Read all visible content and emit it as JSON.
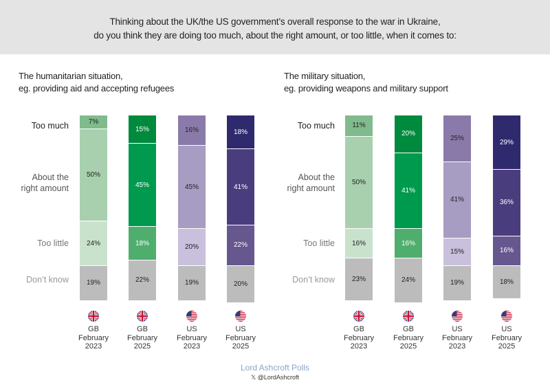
{
  "header": {
    "line1": "Thinking about the UK/the US government’s overall response to the war in Ukraine,",
    "line2": "do you think they are doing too much, about the right amount, or too little, when it comes to:"
  },
  "footer": {
    "brand": "Lord Ashcroft Polls",
    "handle": "𝕏 @LordAshcroft"
  },
  "chart_data": [
    {
      "type": "bar",
      "stacked": true,
      "orientation": "vertical",
      "title": "The humanitarian situation,",
      "subtitle": "eg. providing aid and accepting refugees",
      "categories": [
        {
          "country": "GB",
          "month": "February",
          "year": "2023",
          "flag": "uk-flag-icon"
        },
        {
          "country": "GB",
          "month": "February",
          "year": "2025",
          "flag": "uk-flag-icon"
        },
        {
          "country": "US",
          "month": "February",
          "year": "2023",
          "flag": "us-flag-icon"
        },
        {
          "country": "US",
          "month": "February",
          "year": "2025",
          "flag": "us-flag-icon"
        }
      ],
      "series": [
        {
          "name": "Too much",
          "values": [
            7,
            15,
            16,
            18
          ]
        },
        {
          "name": "About the right amount",
          "values": [
            50,
            45,
            45,
            41
          ]
        },
        {
          "name": "Too little",
          "values": [
            24,
            18,
            20,
            22
          ]
        },
        {
          "name": "Don’t know",
          "values": [
            19,
            22,
            19,
            20
          ]
        }
      ],
      "ylim": [
        0,
        100
      ],
      "unit": "%"
    },
    {
      "type": "bar",
      "stacked": true,
      "orientation": "vertical",
      "title": "The military situation,",
      "subtitle": "eg. providing weapons and military support",
      "categories": [
        {
          "country": "GB",
          "month": "February",
          "year": "2023",
          "flag": "uk-flag-icon"
        },
        {
          "country": "GB",
          "month": "February",
          "year": "2025",
          "flag": "uk-flag-icon"
        },
        {
          "country": "US",
          "month": "February",
          "year": "2023",
          "flag": "us-flag-icon"
        },
        {
          "country": "US",
          "month": "February",
          "year": "2025",
          "flag": "us-flag-icon"
        }
      ],
      "series": [
        {
          "name": "Too much",
          "values": [
            11,
            20,
            25,
            29
          ]
        },
        {
          "name": "About the right amount",
          "values": [
            50,
            41,
            41,
            36
          ]
        },
        {
          "name": "Too little",
          "values": [
            16,
            16,
            15,
            16
          ]
        },
        {
          "name": "Don’t know",
          "values": [
            23,
            24,
            19,
            18
          ]
        }
      ],
      "ylim": [
        0,
        100
      ],
      "unit": "%"
    }
  ],
  "row_labels": [
    {
      "key": "too_much",
      "text": "Too much",
      "color": "#222222"
    },
    {
      "key": "about_right",
      "line1": "About the",
      "line2": "right amount",
      "color": "#555555"
    },
    {
      "key": "too_little",
      "text": "Too little",
      "color": "#777777"
    },
    {
      "key": "dont_know",
      "text": "Don’t know",
      "color": "#999999"
    }
  ],
  "palette": {
    "gb2023": [
      "#7fbb8c",
      "#a8d0ae",
      "#c9e2cc",
      "#bcbcbc"
    ],
    "gb2025": [
      "#008a3e",
      "#009a4e",
      "#4fae6e",
      "#bcbcbc"
    ],
    "us2023": [
      "#8a7aaa",
      "#a79cc2",
      "#c8c0dc",
      "#bcbcbc"
    ],
    "us2025": [
      "#2f2a6e",
      "#4a3d7e",
      "#66578f",
      "#bcbcbc"
    ],
    "label_text": [
      [
        "#222222",
        "#222222",
        "#222222",
        "#222222"
      ],
      [
        "#ffffff",
        "#ffffff",
        "#ffffff",
        "#222222"
      ],
      [
        "#222222",
        "#222222",
        "#222222",
        "#222222"
      ],
      [
        "#ffffff",
        "#ffffff",
        "#ffffff",
        "#222222"
      ]
    ]
  }
}
